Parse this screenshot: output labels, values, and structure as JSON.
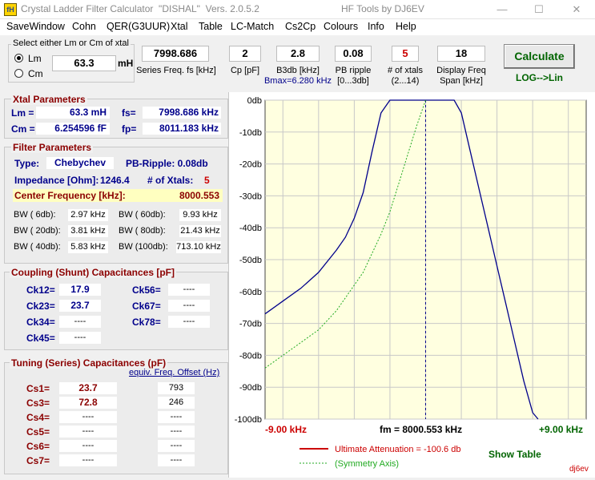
{
  "window": {
    "app_icon": "fH",
    "title": "Crystal Ladder Filter Calculator  \"DISHAL\"  Vers. 2.0.5.2",
    "title_right": "HF Tools by DJ6EV",
    "minimize": "—",
    "maximize": "☐",
    "close": "✕"
  },
  "menu": [
    "SaveWindow",
    "Cohn",
    "QER(G3UUR)",
    "Xtal",
    "Table",
    "LC-Match",
    "Cs2Cp",
    "Colours",
    "Info",
    "Help"
  ],
  "selector": {
    "title": "Select either Lm or Cm of xtal",
    "lm_label": "Lm",
    "cm_label": "Cm",
    "value": "63.3",
    "unit": "mH"
  },
  "inputs": {
    "series_freq": {
      "value": "7998.686",
      "label": "Series Freq. fs [kHz]"
    },
    "cp": {
      "value": "2",
      "label": "Cp [pF]"
    },
    "b3db": {
      "value": "2.8",
      "label": "B3db [kHz]",
      "note": "Bmax=6.280 kHz"
    },
    "pb_ripple": {
      "value": "0.08",
      "label1": "PB ripple",
      "label2": "[0...3db]"
    },
    "num_xtals": {
      "value": "5",
      "label1": "# of xtals",
      "label2": "(2...14)"
    },
    "display_span": {
      "value": "18",
      "label1": "Display Freq",
      "label2": "Span [kHz]"
    }
  },
  "calculate": {
    "label": "Calculate",
    "toggle": "LOG-->Lin"
  },
  "xtal_params": {
    "title": "Xtal Parameters",
    "lm_label": "Lm =",
    "lm_value": "63.3 mH",
    "cm_label": "Cm =",
    "cm_value": "6.254596  fF",
    "fs_label": "fs=",
    "fs_value": "7998.686 kHz",
    "fp_label": "fp=",
    "fp_value": "8011.183 kHz"
  },
  "filter_params": {
    "title": "Filter Parameters",
    "type_label": "Type:",
    "type_value": "Chebychev",
    "pb_ripple": "PB-Ripple: 0.08db",
    "impedance_label": "Impedance [Ohm]:",
    "impedance_value": "1246.4",
    "xtals_label": "# of Xtals:",
    "xtals_value": "5",
    "cf_label": "Center Frequency [kHz]:",
    "cf_value": "8000.553",
    "bw": [
      {
        "label": "BW (  6db):",
        "value": "2.97 kHz"
      },
      {
        "label": "BW ( 60db):",
        "value": "9.93 kHz"
      },
      {
        "label": "BW ( 20db):",
        "value": "3.81 kHz"
      },
      {
        "label": "BW ( 80db):",
        "value": "21.43 kHz"
      },
      {
        "label": "BW ( 40db):",
        "value": "5.83 kHz"
      },
      {
        "label": "BW (100db):",
        "value": "713.10 kHz"
      }
    ]
  },
  "coupling": {
    "title": "Coupling (Shunt) Capacitances [pF]",
    "items": [
      {
        "label": "Ck12=",
        "value": "17.9"
      },
      {
        "label": "Ck56=",
        "value": "----"
      },
      {
        "label": "Ck23=",
        "value": "23.7"
      },
      {
        "label": "Ck67=",
        "value": "----"
      },
      {
        "label": "Ck34=",
        "value": "----"
      },
      {
        "label": "Ck78=",
        "value": "----"
      },
      {
        "label": "Ck45=",
        "value": "----"
      }
    ]
  },
  "tuning": {
    "title": "Tuning (Series) Capacitances (pF)",
    "offset_link": "equiv. Freq. Offset (Hz)",
    "items": [
      {
        "label": "Cs1=",
        "value": "23.7",
        "offset": "793"
      },
      {
        "label": "Cs3=",
        "value": "72.8",
        "offset": "246"
      },
      {
        "label": "Cs4=",
        "value": "----",
        "offset": "----"
      },
      {
        "label": "Cs5=",
        "value": "----",
        "offset": "----"
      },
      {
        "label": "Cs6=",
        "value": "----",
        "offset": "----"
      },
      {
        "label": "Cs7=",
        "value": "----",
        "offset": "----"
      }
    ]
  },
  "chart_labels": {
    "left": "-9.00 kHz",
    "center": "fm = 8000.553 kHz",
    "right": "+9.00 kHz",
    "legend_attenuation": "Ultimate Attenuation =  -100.6 db",
    "legend_symmetry": "(Symmetry Axis)",
    "show_table": "Show Table",
    "watermark": "dj6ev"
  },
  "colors": {
    "response": "#00008b",
    "symmetry": "#22aa22",
    "plot_bg": "#ffffe0",
    "red": "#cc0000"
  },
  "chart_data": {
    "type": "line",
    "x_unit": "kHz offset from fm",
    "xlim": [
      -9,
      9
    ],
    "ylim": [
      -100,
      0
    ],
    "yticks": [
      "0db",
      "-10db",
      "-20db",
      "-30db",
      "-40db",
      "-50db",
      "-60db",
      "-70db",
      "-80db",
      "-90db",
      "-100db"
    ],
    "grid": true,
    "series": [
      {
        "style": "solid",
        "x": [
          -9,
          -8,
          -7,
          -6,
          -5,
          -4.5,
          -4,
          -3.5,
          -3,
          -2.5,
          -2,
          -1.6,
          -1.4,
          1.4,
          1.6,
          2,
          2.5,
          3,
          3.5,
          4,
          4.5,
          5,
          5.5,
          6,
          6.3
        ],
        "y": [
          -67,
          -63,
          -59,
          -54,
          -47,
          -43,
          -37,
          -29,
          -16,
          -4,
          0,
          0,
          0,
          0,
          0,
          -4,
          -16,
          -28,
          -40,
          -52,
          -64,
          -76,
          -88,
          -98,
          -101
        ]
      },
      {
        "style": "dashed",
        "x": [
          -9,
          -8,
          -7,
          -6,
          -5,
          -4,
          -3.5,
          -3,
          -2.5,
          -2,
          -1.5,
          -1,
          -0.5,
          0
        ],
        "y": [
          -84,
          -80,
          -76,
          -72,
          -66,
          -58,
          -54,
          -48,
          -42,
          -35,
          -26,
          -17,
          -8,
          0
        ]
      }
    ],
    "symmetry_axis_x": 0
  }
}
